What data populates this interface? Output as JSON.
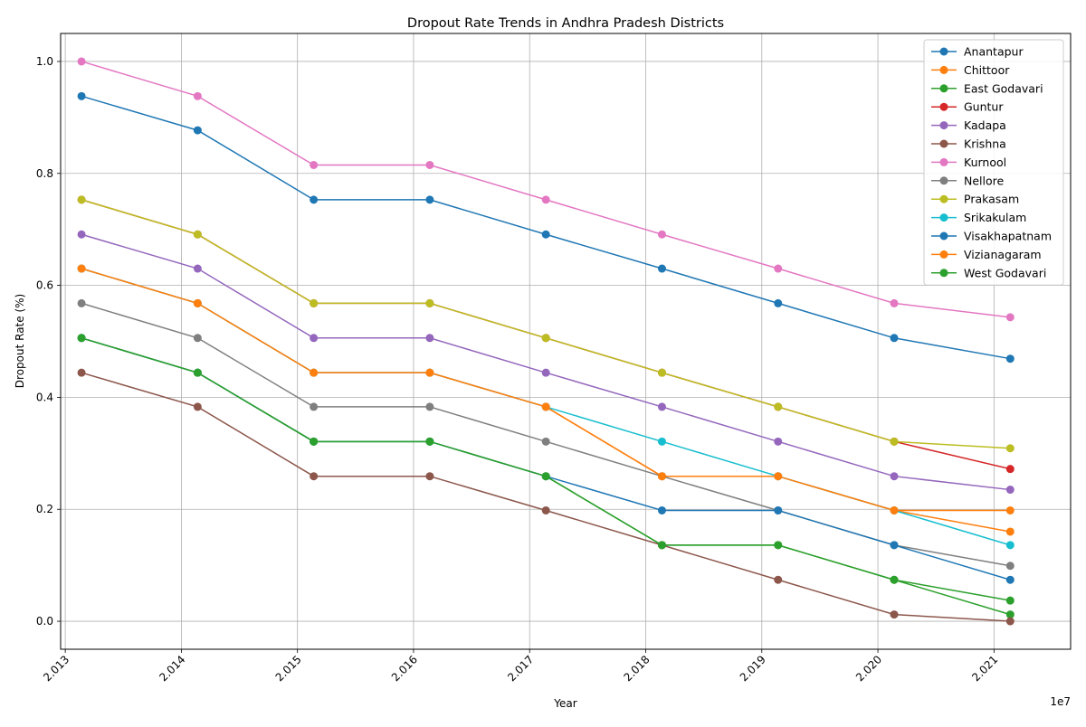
{
  "chart_data": {
    "type": "line",
    "title": "Dropout Rate Trends in Andhra Pradesh Districts",
    "xlabel": "Year",
    "ylabel": "Dropout Rate (%)",
    "x_offset_label": "1e7",
    "xlim": [
      2.01296,
      2.02166
    ],
    "ylim": [
      -0.05,
      1.05
    ],
    "x_ticks": [
      2.013,
      2.014,
      2.015,
      2.016,
      2.017,
      2.018,
      2.019,
      2.02,
      2.021
    ],
    "x_tick_labels": [
      "2.013",
      "2.014",
      "2.015",
      "2.016",
      "2.017",
      "2.018",
      "2.019",
      "2.020",
      "2.021"
    ],
    "y_ticks": [
      0.0,
      0.2,
      0.4,
      0.6,
      0.8,
      1.0
    ],
    "y_tick_labels": [
      "0.0",
      "0.2",
      "0.4",
      "0.6",
      "0.8",
      "1.0"
    ],
    "grid": true,
    "legend_position": "top-right",
    "x": [
      2.01314,
      2.01414,
      2.01514,
      2.01614,
      2.01714,
      2.01814,
      2.01914,
      2.02014,
      2.02114
    ],
    "series": [
      {
        "name": "Anantapur",
        "color": "#1f77b4",
        "values": [
          0.938,
          0.877,
          0.753,
          0.753,
          0.691,
          0.63,
          0.568,
          0.506,
          0.469
        ]
      },
      {
        "name": "Chittoor",
        "color": "#ff7f0e",
        "values": [
          0.63,
          0.568,
          0.444,
          0.444,
          0.383,
          0.259,
          0.259,
          0.198,
          0.16
        ]
      },
      {
        "name": "East Godavari",
        "color": "#2ca02c",
        "values": [
          0.506,
          0.444,
          0.321,
          0.321,
          0.259,
          0.136,
          0.136,
          0.074,
          0.012
        ]
      },
      {
        "name": "Guntur",
        "color": "#d62728",
        "values": [
          0.753,
          0.691,
          0.568,
          0.568,
          0.506,
          0.444,
          0.383,
          0.321,
          0.272
        ]
      },
      {
        "name": "Kadapa",
        "color": "#9467bd",
        "values": [
          0.691,
          0.63,
          0.506,
          0.506,
          0.444,
          0.383,
          0.321,
          0.259,
          0.235
        ]
      },
      {
        "name": "Krishna",
        "color": "#8c564b",
        "values": [
          0.444,
          0.383,
          0.259,
          0.259,
          0.198,
          0.136,
          0.074,
          0.012,
          0.0
        ]
      },
      {
        "name": "Kurnool",
        "color": "#e377c2",
        "values": [
          1.0,
          0.938,
          0.815,
          0.815,
          0.753,
          0.691,
          0.63,
          0.568,
          0.543
        ]
      },
      {
        "name": "Nellore",
        "color": "#7f7f7f",
        "values": [
          0.568,
          0.506,
          0.383,
          0.383,
          0.321,
          0.259,
          0.198,
          0.136,
          0.099
        ]
      },
      {
        "name": "Prakasam",
        "color": "#bcbd22",
        "values": [
          0.753,
          0.691,
          0.568,
          0.568,
          0.506,
          0.444,
          0.383,
          0.321,
          0.309
        ]
      },
      {
        "name": "Srikakulam",
        "color": "#17becf",
        "values": [
          0.63,
          0.568,
          0.444,
          0.444,
          0.383,
          0.321,
          0.259,
          0.198,
          0.136
        ]
      },
      {
        "name": "Visakhapatnam",
        "color": "#1f77b4",
        "values": [
          0.506,
          0.444,
          0.321,
          0.321,
          0.259,
          0.198,
          0.198,
          0.136,
          0.074
        ]
      },
      {
        "name": "Vizianagaram",
        "color": "#ff7f0e",
        "values": [
          0.63,
          0.568,
          0.444,
          0.444,
          0.383,
          0.259,
          0.259,
          0.198,
          0.198
        ]
      },
      {
        "name": "West Godavari",
        "color": "#2ca02c",
        "values": [
          0.506,
          0.444,
          0.321,
          0.321,
          0.259,
          0.136,
          0.136,
          0.074,
          0.037
        ]
      }
    ]
  }
}
